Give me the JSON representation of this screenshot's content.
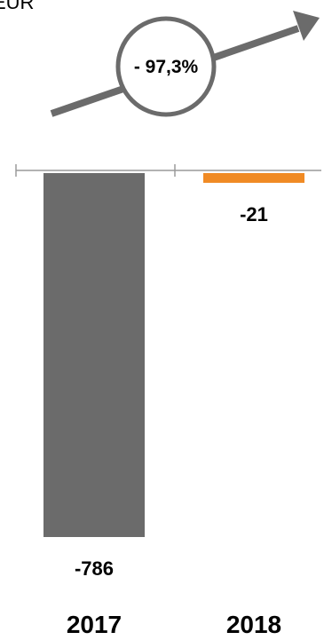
{
  "unit_label": "EUR",
  "change_badge": {
    "text": "- 97,3%"
  },
  "colors": {
    "bar_2017": "#6b6b6b",
    "bar_2018": "#f08a24",
    "arrow": "#6b6b6b",
    "axis": "#9a9a9a"
  },
  "chart_data": {
    "type": "bar",
    "categories": [
      "2017",
      "2018"
    ],
    "values": [
      -786,
      -21
    ],
    "data_labels": [
      "-786",
      "-21"
    ],
    "title": "",
    "xlabel": "",
    "ylabel": "",
    "ylim": [
      -786,
      0
    ],
    "grid": false,
    "legend": "none"
  }
}
